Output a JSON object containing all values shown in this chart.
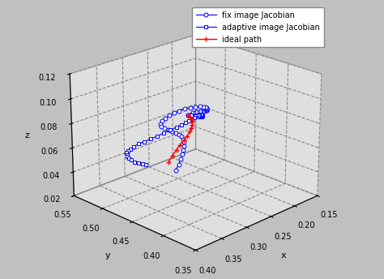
{
  "background_color": "#c0c0c0",
  "pane_color_xy": "#ffffff",
  "pane_color_yz": "#d8d8d8",
  "pane_color_xz": "#d8d8d8",
  "legend_labels": [
    "fix image Jacobian",
    "adaptive image Jacobian",
    "ideal path"
  ],
  "xlabel": "x",
  "ylabel": "y",
  "zlabel": "z",
  "xlim": [
    0.15,
    0.4
  ],
  "ylim": [
    0.35,
    0.55
  ],
  "zlim": [
    0.02,
    0.12
  ],
  "xticks": [
    0.15,
    0.2,
    0.25,
    0.3,
    0.35,
    0.4
  ],
  "yticks": [
    0.35,
    0.4,
    0.45,
    0.5,
    0.55
  ],
  "zticks": [
    0.02,
    0.04,
    0.06,
    0.08,
    0.1,
    0.12
  ],
  "elev": 22,
  "azim": -135,
  "fix_x": [
    0.395,
    0.39,
    0.385,
    0.38,
    0.375,
    0.37,
    0.365,
    0.36,
    0.355,
    0.35,
    0.345,
    0.34,
    0.335,
    0.33,
    0.325,
    0.32,
    0.318,
    0.317,
    0.318,
    0.322,
    0.328,
    0.335,
    0.342,
    0.35,
    0.358,
    0.365,
    0.37,
    0.372,
    0.37,
    0.365,
    0.358,
    0.35,
    0.34,
    0.33,
    0.32,
    0.31,
    0.3,
    0.29,
    0.28,
    0.27,
    0.26,
    0.255
  ],
  "fix_y": [
    0.365,
    0.365,
    0.366,
    0.367,
    0.368,
    0.369,
    0.37,
    0.371,
    0.373,
    0.375,
    0.378,
    0.381,
    0.385,
    0.389,
    0.393,
    0.398,
    0.404,
    0.41,
    0.416,
    0.421,
    0.425,
    0.428,
    0.43,
    0.431,
    0.431,
    0.43,
    0.428,
    0.425,
    0.422,
    0.42,
    0.42,
    0.421,
    0.424,
    0.428,
    0.434,
    0.441,
    0.449,
    0.458,
    0.468,
    0.479,
    0.49,
    0.5
  ],
  "fix_z": [
    0.12,
    0.12,
    0.12,
    0.119,
    0.119,
    0.118,
    0.118,
    0.117,
    0.116,
    0.115,
    0.114,
    0.113,
    0.112,
    0.111,
    0.11,
    0.109,
    0.108,
    0.107,
    0.106,
    0.105,
    0.104,
    0.103,
    0.102,
    0.101,
    0.1,
    0.099,
    0.098,
    0.097,
    0.096,
    0.094,
    0.092,
    0.089,
    0.086,
    0.082,
    0.077,
    0.072,
    0.066,
    0.059,
    0.052,
    0.044,
    0.036,
    0.028
  ],
  "adaptive_x": [
    0.395,
    0.388,
    0.38,
    0.372,
    0.364,
    0.356,
    0.348,
    0.34,
    0.332,
    0.324,
    0.317,
    0.311,
    0.306,
    0.302,
    0.299,
    0.297,
    0.296,
    0.297,
    0.299,
    0.302,
    0.307,
    0.314,
    0.322,
    0.33,
    0.338,
    0.345,
    0.35,
    0.353,
    0.353,
    0.35,
    0.345,
    0.338,
    0.33,
    0.32,
    0.309,
    0.297,
    0.284,
    0.27,
    0.257
  ],
  "adaptive_y": [
    0.365,
    0.366,
    0.368,
    0.37,
    0.373,
    0.377,
    0.382,
    0.388,
    0.394,
    0.401,
    0.408,
    0.415,
    0.421,
    0.426,
    0.431,
    0.435,
    0.439,
    0.443,
    0.447,
    0.451,
    0.455,
    0.459,
    0.463,
    0.467,
    0.471,
    0.476,
    0.481,
    0.487,
    0.493,
    0.499,
    0.506,
    0.512,
    0.518,
    0.524,
    0.53,
    0.535,
    0.54,
    0.545,
    0.55
  ],
  "adaptive_z": [
    0.12,
    0.119,
    0.117,
    0.115,
    0.113,
    0.111,
    0.109,
    0.107,
    0.105,
    0.103,
    0.101,
    0.099,
    0.097,
    0.095,
    0.093,
    0.091,
    0.089,
    0.087,
    0.085,
    0.083,
    0.081,
    0.079,
    0.077,
    0.075,
    0.073,
    0.071,
    0.069,
    0.066,
    0.063,
    0.06,
    0.056,
    0.052,
    0.048,
    0.044,
    0.04,
    0.035,
    0.031,
    0.027,
    0.023
  ],
  "ideal_x": [
    0.395,
    0.385,
    0.375,
    0.364,
    0.353,
    0.341,
    0.329,
    0.317,
    0.305,
    0.293,
    0.281,
    0.27,
    0.259
  ],
  "ideal_y": [
    0.365,
    0.37,
    0.376,
    0.384,
    0.393,
    0.404,
    0.416,
    0.43,
    0.445,
    0.461,
    0.477,
    0.493,
    0.508
  ],
  "ideal_z": [
    0.12,
    0.116,
    0.112,
    0.107,
    0.101,
    0.095,
    0.088,
    0.08,
    0.072,
    0.063,
    0.054,
    0.044,
    0.034
  ]
}
